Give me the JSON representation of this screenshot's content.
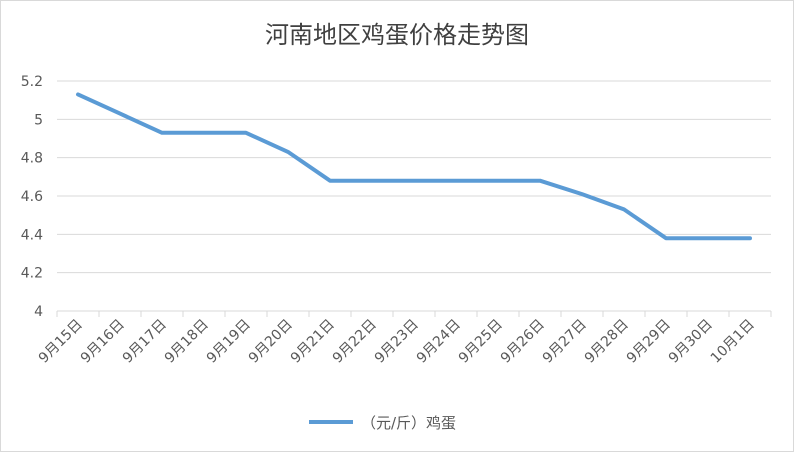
{
  "chart_data": {
    "type": "line",
    "title": "河南地区鸡蛋价格走势图",
    "categories": [
      "9月15日",
      "9月16日",
      "9月17日",
      "9月18日",
      "9月19日",
      "9月20日",
      "9月21日",
      "9月22日",
      "9月23日",
      "9月24日",
      "9月25日",
      "9月26日",
      "9月27日",
      "9月28日",
      "9月29日",
      "9月30日",
      "10月1日"
    ],
    "series": [
      {
        "name": "（元/斤）鸡蛋",
        "values": [
          5.13,
          5.03,
          4.93,
          4.93,
          4.93,
          4.83,
          4.68,
          4.68,
          4.68,
          4.68,
          4.68,
          4.68,
          4.61,
          4.53,
          4.38,
          4.38,
          4.38
        ]
      }
    ],
    "yticks": [
      "4",
      "4.2",
      "4.4",
      "4.6",
      "4.8",
      "5",
      "5.2"
    ],
    "ylim": [
      4,
      5.2
    ],
    "grid": true,
    "legend_position": "bottom",
    "line_color": "#5b9bd5"
  }
}
